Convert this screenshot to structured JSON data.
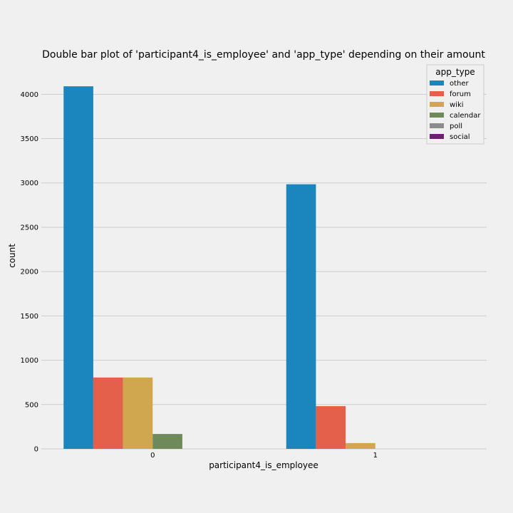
{
  "chart_data": {
    "type": "bar",
    "title": "Double bar plot of 'participant4_is_employee' and 'app_type' depending on their amount",
    "xlabel": "participant4_is_employee",
    "ylabel": "count",
    "categories": [
      "0",
      "1"
    ],
    "ylim": [
      0,
      4300
    ],
    "yticks": [
      0,
      500,
      1000,
      1500,
      2000,
      2500,
      3000,
      3500,
      4000
    ],
    "grid": true,
    "legend": {
      "title": "app_type",
      "placement": "top-right"
    },
    "series": [
      {
        "name": "other",
        "color": "#1a86bd",
        "values": [
          4090,
          2985
        ]
      },
      {
        "name": "forum",
        "color": "#e5604a",
        "values": [
          805,
          482
        ]
      },
      {
        "name": "wiki",
        "color": "#d0a64f",
        "values": [
          805,
          65
        ]
      },
      {
        "name": "calendar",
        "color": "#6e8a5a",
        "values": [
          168,
          0
        ]
      },
      {
        "name": "poll",
        "color": "#8c8c8c",
        "values": [
          0,
          0
        ]
      },
      {
        "name": "social",
        "color": "#6a2170",
        "values": [
          0,
          0
        ]
      }
    ]
  }
}
